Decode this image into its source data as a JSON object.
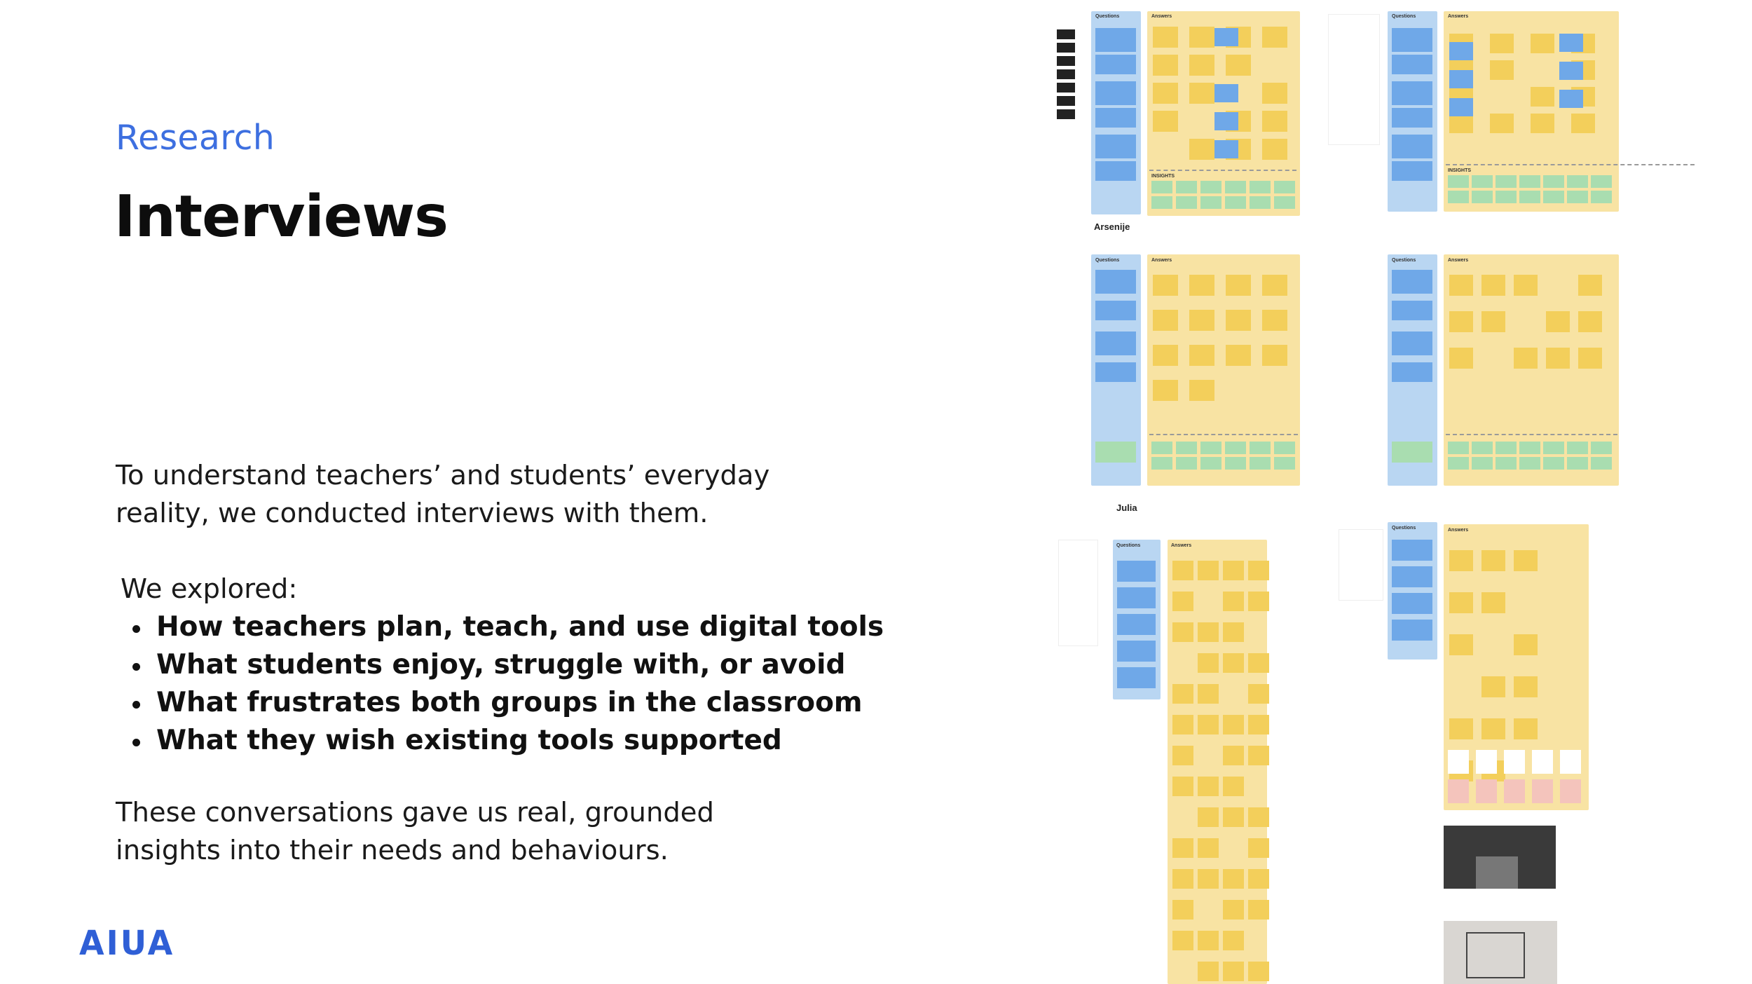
{
  "slide": {
    "section_label": "Research",
    "title": "Interviews",
    "intro": "To understand teachers’ and students’ everyday reality, we conducted interviews with them.",
    "explored_label": "We explored:",
    "bullets": [
      "How teachers plan, teach, and use digital tools",
      "What students enjoy, struggle with, or avoid",
      "What frustrates both groups in the classroom",
      "What they wish existing tools supported"
    ],
    "outro": "These conversations gave us real, grounded insights into their needs and behaviours.",
    "logo": "AIUA"
  },
  "boards": [
    {
      "name": "",
      "questions_label": "Questions",
      "answers_label": "Answers",
      "insights_label": "INSIGHTS"
    },
    {
      "name": "",
      "questions_label": "Questions",
      "answers_label": "Answers",
      "insights_label": "INSIGHTS"
    },
    {
      "name": "Arsenije",
      "questions_label": "Questions",
      "answers_label": "Answers"
    },
    {
      "name": "",
      "questions_label": "Questions",
      "answers_label": "Answers"
    },
    {
      "name": "Julia",
      "questions_label": "Questions",
      "answers_label": "Answers"
    },
    {
      "name": "",
      "questions_label": "Questions",
      "answers_label": "Answers"
    }
  ],
  "colors": {
    "accent": "#3d6fe0",
    "questions_column": "#b9d6f2",
    "answers_column": "#f8e3a3",
    "sticky_yellow": "#f3cf5b",
    "sticky_blue": "#6fa8e8",
    "insight_green": "#a9ddb0"
  }
}
